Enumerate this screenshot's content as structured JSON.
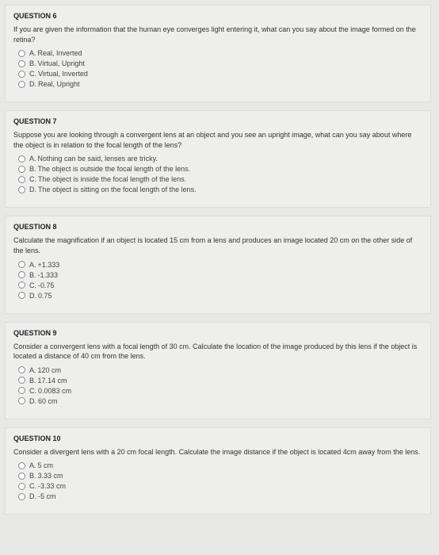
{
  "questions": [
    {
      "title": "QUESTION 6",
      "prompt": "If you are given the information that the human eye converges light entering it, what can you say about the image formed on the retina?",
      "answers": [
        {
          "letter": "A.",
          "text": "Real, Inverted"
        },
        {
          "letter": "B.",
          "text": "Virtual, Upright"
        },
        {
          "letter": "C.",
          "text": "Virtual, Inverted"
        },
        {
          "letter": "D.",
          "text": "Real, Upright"
        }
      ]
    },
    {
      "title": "QUESTION 7",
      "prompt": "Suppose you are looking through a convergent lens at an object and you see an upright image, what can you say about where the object is in relation to the focal length of the lens?",
      "answers": [
        {
          "letter": "A.",
          "text": "Nothing can be said, lenses are tricky."
        },
        {
          "letter": "B.",
          "text": "The object is outside the focal length of the lens."
        },
        {
          "letter": "C.",
          "text": "The object is inside the focal length of the lens."
        },
        {
          "letter": "D.",
          "text": "The object is sitting on the focal length of the lens."
        }
      ]
    },
    {
      "title": "QUESTION 8",
      "prompt": "Calculate the magnification if an object is located 15 cm from a lens and produces an image located 20 cm on the other side of the lens.",
      "answers": [
        {
          "letter": "A.",
          "text": "+1.333"
        },
        {
          "letter": "B.",
          "text": "-1.333"
        },
        {
          "letter": "C.",
          "text": "-0.75"
        },
        {
          "letter": "D.",
          "text": "0.75"
        }
      ]
    },
    {
      "title": "QUESTION 9",
      "prompt": "Consider a convergent lens with a focal length of 30 cm. Calculate the location of the image produced by this lens if the object is located a distance of 40 cm from the lens.",
      "answers": [
        {
          "letter": "A.",
          "text": "120 cm"
        },
        {
          "letter": "B.",
          "text": "17.14 cm"
        },
        {
          "letter": "C.",
          "text": "0.0083 cm"
        },
        {
          "letter": "D.",
          "text": "60 cm"
        }
      ]
    },
    {
      "title": "QUESTION 10",
      "prompt": "Consider a divergent lens with a 20 cm focal length. Calculate the image distance if the object is located 4cm away from the lens.",
      "answers": [
        {
          "letter": "A.",
          "text": "5 cm"
        },
        {
          "letter": "B.",
          "text": "3.33 cm"
        },
        {
          "letter": "C.",
          "text": "-3.33 cm"
        },
        {
          "letter": "D.",
          "text": "-5 cm"
        }
      ]
    }
  ]
}
